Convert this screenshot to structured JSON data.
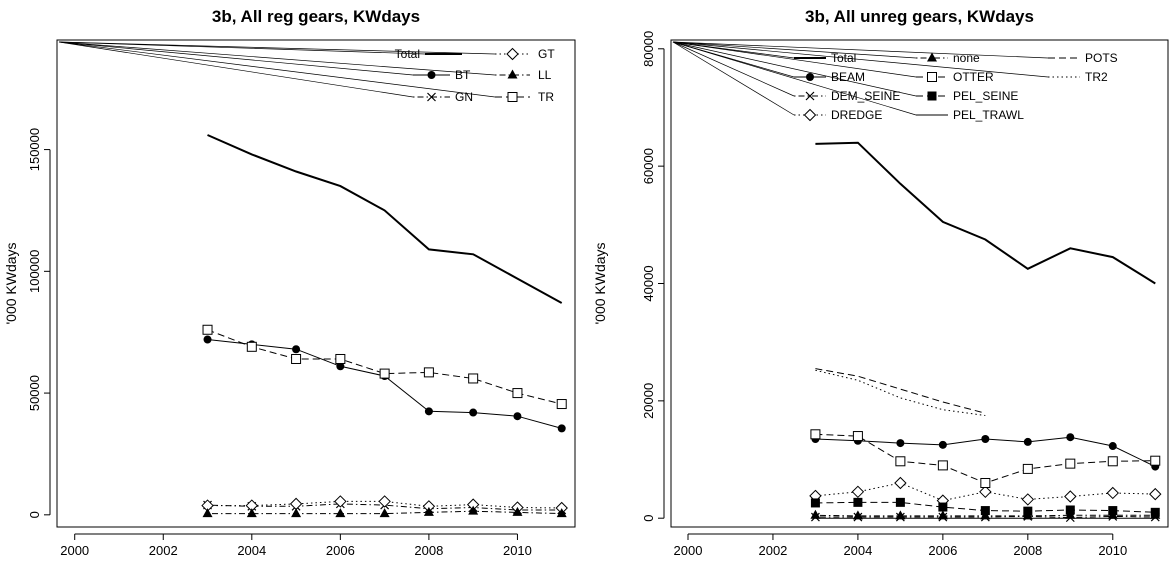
{
  "chart_data": [
    {
      "type": "line",
      "title": "3b, All reg gears, KWdays",
      "xlabel": "",
      "ylabel": "'000 KWdays",
      "xlim": [
        1999.6,
        2011.3
      ],
      "ylim": [
        -5000,
        195000
      ],
      "x_ticks": [
        2000,
        2002,
        2004,
        2006,
        2008,
        2010
      ],
      "y_ticks": [
        0,
        50000,
        100000,
        150000
      ],
      "grid": false,
      "legend_position": "top-right",
      "legend": [
        {
          "label": "Total",
          "line": "solid",
          "marker": "none",
          "thick": true
        },
        {
          "label": "BT",
          "line": "solid",
          "marker": "circle-filled"
        },
        {
          "label": "GN",
          "line": "dotdash",
          "marker": "cross"
        },
        {
          "label": "GT",
          "line": "dotted",
          "marker": "diamond-open"
        },
        {
          "label": "LL",
          "line": "dotdash",
          "marker": "triangle-filled"
        },
        {
          "label": "TR",
          "line": "dashed",
          "marker": "square-open"
        }
      ],
      "series": [
        {
          "name": "Total",
          "x": [
            2003,
            2004,
            2005,
            2006,
            2007,
            2008,
            2009,
            2010,
            2011
          ],
          "values": [
            156000,
            148000,
            141000,
            135000,
            125000,
            109000,
            107000,
            97000,
            87000
          ]
        },
        {
          "name": "BT",
          "x": [
            2003,
            2004,
            2005,
            2006,
            2007,
            2008,
            2009,
            2010,
            2011
          ],
          "values": [
            72000,
            70000,
            68000,
            61000,
            57000,
            42500,
            42000,
            40500,
            35500
          ]
        },
        {
          "name": "GN",
          "x": [
            2003,
            2004,
            2005,
            2006,
            2007,
            2008,
            2009,
            2010,
            2011
          ],
          "values": [
            4000,
            3500,
            3500,
            4500,
            4000,
            2500,
            3000,
            2000,
            2000
          ]
        },
        {
          "name": "GT",
          "x": [
            2003,
            2004,
            2005,
            2006,
            2007,
            2008,
            2009,
            2010,
            2011
          ],
          "values": [
            3800,
            3800,
            4500,
            5500,
            5500,
            3500,
            4200,
            3000,
            2800
          ]
        },
        {
          "name": "LL",
          "x": [
            2003,
            2004,
            2005,
            2006,
            2007,
            2008,
            2009,
            2010,
            2011
          ],
          "values": [
            500,
            500,
            500,
            500,
            500,
            1000,
            1500,
            1000,
            500
          ]
        },
        {
          "name": "TR",
          "x": [
            2003,
            2004,
            2005,
            2006,
            2007,
            2008,
            2009,
            2010,
            2011
          ],
          "values": [
            76000,
            69000,
            64000,
            64000,
            58000,
            58500,
            56000,
            50000,
            45500
          ]
        }
      ]
    },
    {
      "type": "line",
      "title": "3b, All unreg gears, KWdays",
      "xlabel": "",
      "ylabel": "'000 KWdays",
      "xlim": [
        1999.6,
        2011.3
      ],
      "ylim": [
        -1500,
        81500
      ],
      "x_ticks": [
        2000,
        2002,
        2004,
        2006,
        2008,
        2010
      ],
      "y_ticks": [
        0,
        20000,
        40000,
        60000,
        80000
      ],
      "grid": false,
      "legend_position": "top-right",
      "legend": [
        {
          "label": "Total",
          "line": "solid",
          "marker": "none",
          "thick": true
        },
        {
          "label": "BEAM",
          "line": "solid",
          "marker": "circle-filled"
        },
        {
          "label": "DEM_SEINE",
          "line": "dotdash",
          "marker": "cross"
        },
        {
          "label": "DREDGE",
          "line": "dotted",
          "marker": "diamond-open"
        },
        {
          "label": "none",
          "line": "dotdash",
          "marker": "triangle-filled"
        },
        {
          "label": "OTTER",
          "line": "dashed",
          "marker": "square-open"
        },
        {
          "label": "PEL_SEINE",
          "line": "dashed",
          "marker": "square-filled"
        },
        {
          "label": "PEL_TRAWL",
          "line": "solid",
          "marker": "none"
        },
        {
          "label": "POTS",
          "line": "dashed",
          "marker": "none"
        },
        {
          "label": "TR2",
          "line": "dotted",
          "marker": "none"
        }
      ],
      "series": [
        {
          "name": "Total",
          "x": [
            2003,
            2004,
            2005,
            2006,
            2007,
            2008,
            2009,
            2010,
            2011
          ],
          "values": [
            63800,
            64000,
            57000,
            50500,
            47500,
            42500,
            46000,
            44500,
            40000
          ]
        },
        {
          "name": "BEAM",
          "x": [
            2003,
            2004,
            2005,
            2006,
            2007,
            2008,
            2009,
            2010,
            2011
          ],
          "values": [
            13500,
            13200,
            12800,
            12500,
            13500,
            13000,
            13800,
            12300,
            8800
          ]
        },
        {
          "name": "DEM_SEINE",
          "x": [
            2003,
            2004,
            2005,
            2006,
            2007,
            2008,
            2009,
            2010,
            2011
          ],
          "values": [
            200,
            200,
            200,
            200,
            200,
            300,
            100,
            300,
            200
          ]
        },
        {
          "name": "DREDGE",
          "x": [
            2003,
            2004,
            2005,
            2006,
            2007,
            2008,
            2009,
            2010,
            2011
          ],
          "values": [
            3800,
            4500,
            6000,
            3000,
            4500,
            3200,
            3700,
            4300,
            4100
          ]
        },
        {
          "name": "none",
          "x": [
            2003,
            2004,
            2005,
            2006,
            2007,
            2008,
            2009,
            2010,
            2011
          ],
          "values": [
            500,
            400,
            400,
            400,
            400,
            400,
            500,
            500,
            500
          ]
        },
        {
          "name": "OTTER",
          "x": [
            2003,
            2004,
            2005,
            2006,
            2007,
            2008,
            2009,
            2010,
            2011
          ],
          "values": [
            14300,
            14000,
            9700,
            9000,
            6000,
            8400,
            9300,
            9700,
            9800
          ]
        },
        {
          "name": "PEL_SEINE",
          "x": [
            2003,
            2004,
            2005,
            2006,
            2007,
            2008,
            2009,
            2010,
            2011
          ],
          "values": [
            2600,
            2700,
            2700,
            1900,
            1300,
            1200,
            1400,
            1300,
            1000
          ]
        },
        {
          "name": "PEL_TRAWL",
          "x": [
            2003,
            2004,
            2005,
            2006,
            2007,
            2008,
            2009,
            2010,
            2011
          ],
          "values": [
            0,
            0,
            0,
            0,
            0,
            0,
            0,
            0,
            0
          ]
        },
        {
          "name": "POTS",
          "x": [
            2003,
            2004,
            2005,
            2006,
            2007
          ],
          "values": [
            25500,
            24200,
            22000,
            19800,
            17900
          ]
        },
        {
          "name": "TR2",
          "x": [
            2003,
            2004,
            2005,
            2006,
            2007
          ],
          "values": [
            25200,
            23500,
            20500,
            18500,
            17500
          ]
        }
      ]
    }
  ]
}
